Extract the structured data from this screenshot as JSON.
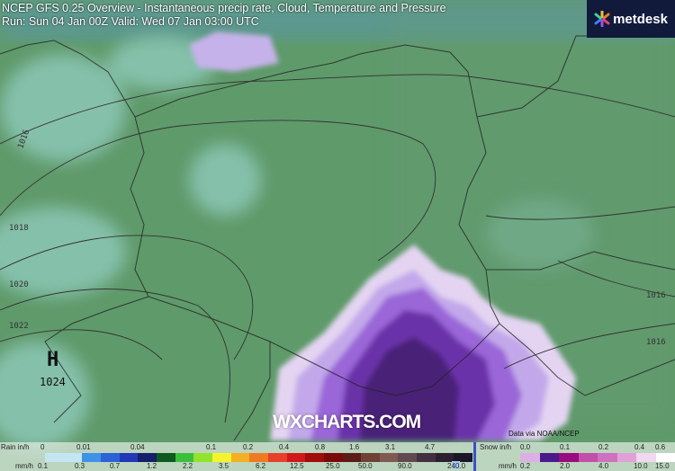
{
  "header": {
    "title": "NCEP GFS 0.25 Overview - Instantaneous precip rate, Cloud, Temperature and Pressure",
    "run": "Run: Sun 04 Jan 00Z Valid: Wed 07 Jan 03:00 UTC"
  },
  "logo": {
    "text": "metdesk",
    "icon": "asterisk-flower-icon"
  },
  "watermark": "WXCHARTS.COM",
  "credit": "Data via NOAA/NCEP",
  "pressure": {
    "high_label": "H",
    "high_value": "1024",
    "isobars": [
      "1016",
      "1018",
      "1020",
      "1022",
      "1016",
      "1016"
    ]
  },
  "legend": {
    "rain": {
      "title_in": "Rain in/h",
      "title_mm": "mm/h",
      "in_labels": [
        "0",
        "0.01",
        "0.04",
        "0.1",
        "0.2",
        "0.4",
        "0.8",
        "1.6",
        "3.1",
        "4.7"
      ],
      "mm_labels": [
        "0.1",
        "0.3",
        "0.7",
        "1.2",
        "2.2",
        "3.5",
        "6.2",
        "12.5",
        "25.0",
        "50.0",
        "90.0",
        "240.0"
      ],
      "colors": [
        "#c4e6f2",
        "#c4e6f2",
        "#3f92e8",
        "#2b62d8",
        "#2238b8",
        "#14206a",
        "#0f5a1e",
        "#3cbf3c",
        "#90e42c",
        "#f4f42c",
        "#f4b020",
        "#ef7a22",
        "#e6402a",
        "#d01818",
        "#a20c0c",
        "#7a0a0a",
        "#5c1c18",
        "#6e4232",
        "#7e5a50",
        "#604a50",
        "#423040",
        "#2a2030",
        "#1a1628"
      ]
    },
    "snow": {
      "title_in": "Snow in/h",
      "title_mm": "mm/h",
      "in_labels": [
        "0.0",
        "0.1",
        "0.2",
        "0.4",
        "0.6"
      ],
      "mm_labels": [
        "0.2",
        "2.0",
        "4.0",
        "10.0",
        "15.0"
      ],
      "colors": [
        "#dcb0e4",
        "#4a1a8a",
        "#9a0a80",
        "#c050a8",
        "#d070c0",
        "#e0a0d8",
        "#f0d8f0",
        "#ffffff"
      ]
    }
  },
  "colors": {
    "land": "#5f9a6a",
    "cloud": "#8fc8bc",
    "snow_light": "#c9b4ea",
    "snow_mid": "#8a55d0",
    "snow_dark": "#4a2278"
  }
}
